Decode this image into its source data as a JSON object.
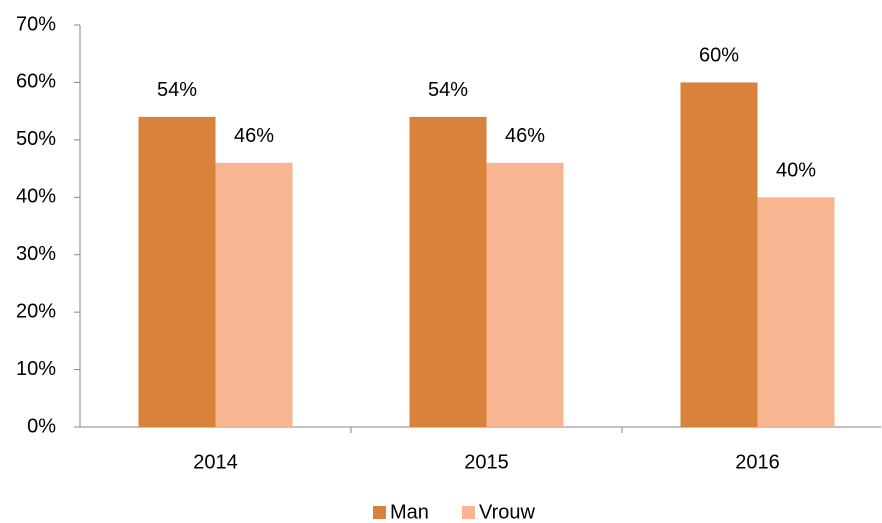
{
  "chart_data": {
    "type": "bar",
    "categories": [
      "2014",
      "2015",
      "2016"
    ],
    "series": [
      {
        "name": "Man",
        "color": "#d9823b",
        "values": [
          54,
          54,
          60
        ],
        "value_labels": [
          "54%",
          "54%",
          "60%"
        ]
      },
      {
        "name": "Vrouw",
        "color": "#f8b592",
        "values": [
          46,
          46,
          40
        ],
        "value_labels": [
          "46%",
          "46%",
          "40%"
        ]
      }
    ],
    "ylim": [
      0,
      70
    ],
    "yticks": [
      {
        "value": 0,
        "label": "0%"
      },
      {
        "value": 10,
        "label": "10%"
      },
      {
        "value": 20,
        "label": "20%"
      },
      {
        "value": 30,
        "label": "30%"
      },
      {
        "value": 40,
        "label": "40%"
      },
      {
        "value": 50,
        "label": "50%"
      },
      {
        "value": 60,
        "label": "60%"
      },
      {
        "value": 70,
        "label": "70%"
      }
    ],
    "grid": false,
    "legend": "bottom"
  }
}
